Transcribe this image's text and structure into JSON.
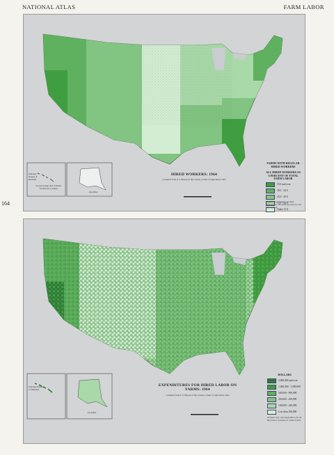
{
  "header": {
    "left": "NATIONAL ATLAS",
    "right": "FARM LABOR",
    "page_number": "164"
  },
  "map1": {
    "title": "HIRED WORKERS: 1964",
    "legend_heading1": "FARMS WITH REGULAR HIRED WORKERS",
    "legend_heading2": "ALL HIRED WORKERS AS A PERCENT OF TOTAL FARM LABOR",
    "legend_items": [
      "35.0 and over",
      "30.0 - 34.9",
      "25.0 - 29.9",
      "15.0 - 24.9",
      "Under 15.0"
    ],
    "legend_colors": [
      "#3f9e3f",
      "#5fb15f",
      "#82c482",
      "#a9d9a9",
      "#d3edd3"
    ],
    "hawaii_label": "Principal Islands of HAWAII",
    "hawaii_note": "No percentage data available for Hawaii or Alaska",
    "alaska_label": "ALASKA",
    "footnote": "Regular hired workers are those employed for the same operator for 150 days or more",
    "source": "Compiled from U.S. Bureau of the Census, Census of Agriculture 1964"
  },
  "map2": {
    "title": "EXPENDITURES FOR HIRED LABOR ON FARMS: 1964",
    "legend_heading": "DOLLARS",
    "legend_items": [
      "2,000,000 and over",
      "1,000,000 - 1,999,999",
      "500,000 - 999,999",
      "250,000 - 499,999",
      "100,000 - 249,999",
      "Less than 100,000"
    ],
    "legend_colors": [
      "#2d7e36",
      "#3f9e3f",
      "#5fb15f",
      "#82c482",
      "#a9d9a9",
      "#d6eed6"
    ],
    "hawaii_label": "Principal Islands of HAWAII",
    "alaska_label": "ALASKA",
    "footnote": "Includes only cash expenditures for all hired labor exclusive of contract labor",
    "source": "Compiled from U.S. Bureau of the Census, Census of Agriculture 1964"
  }
}
